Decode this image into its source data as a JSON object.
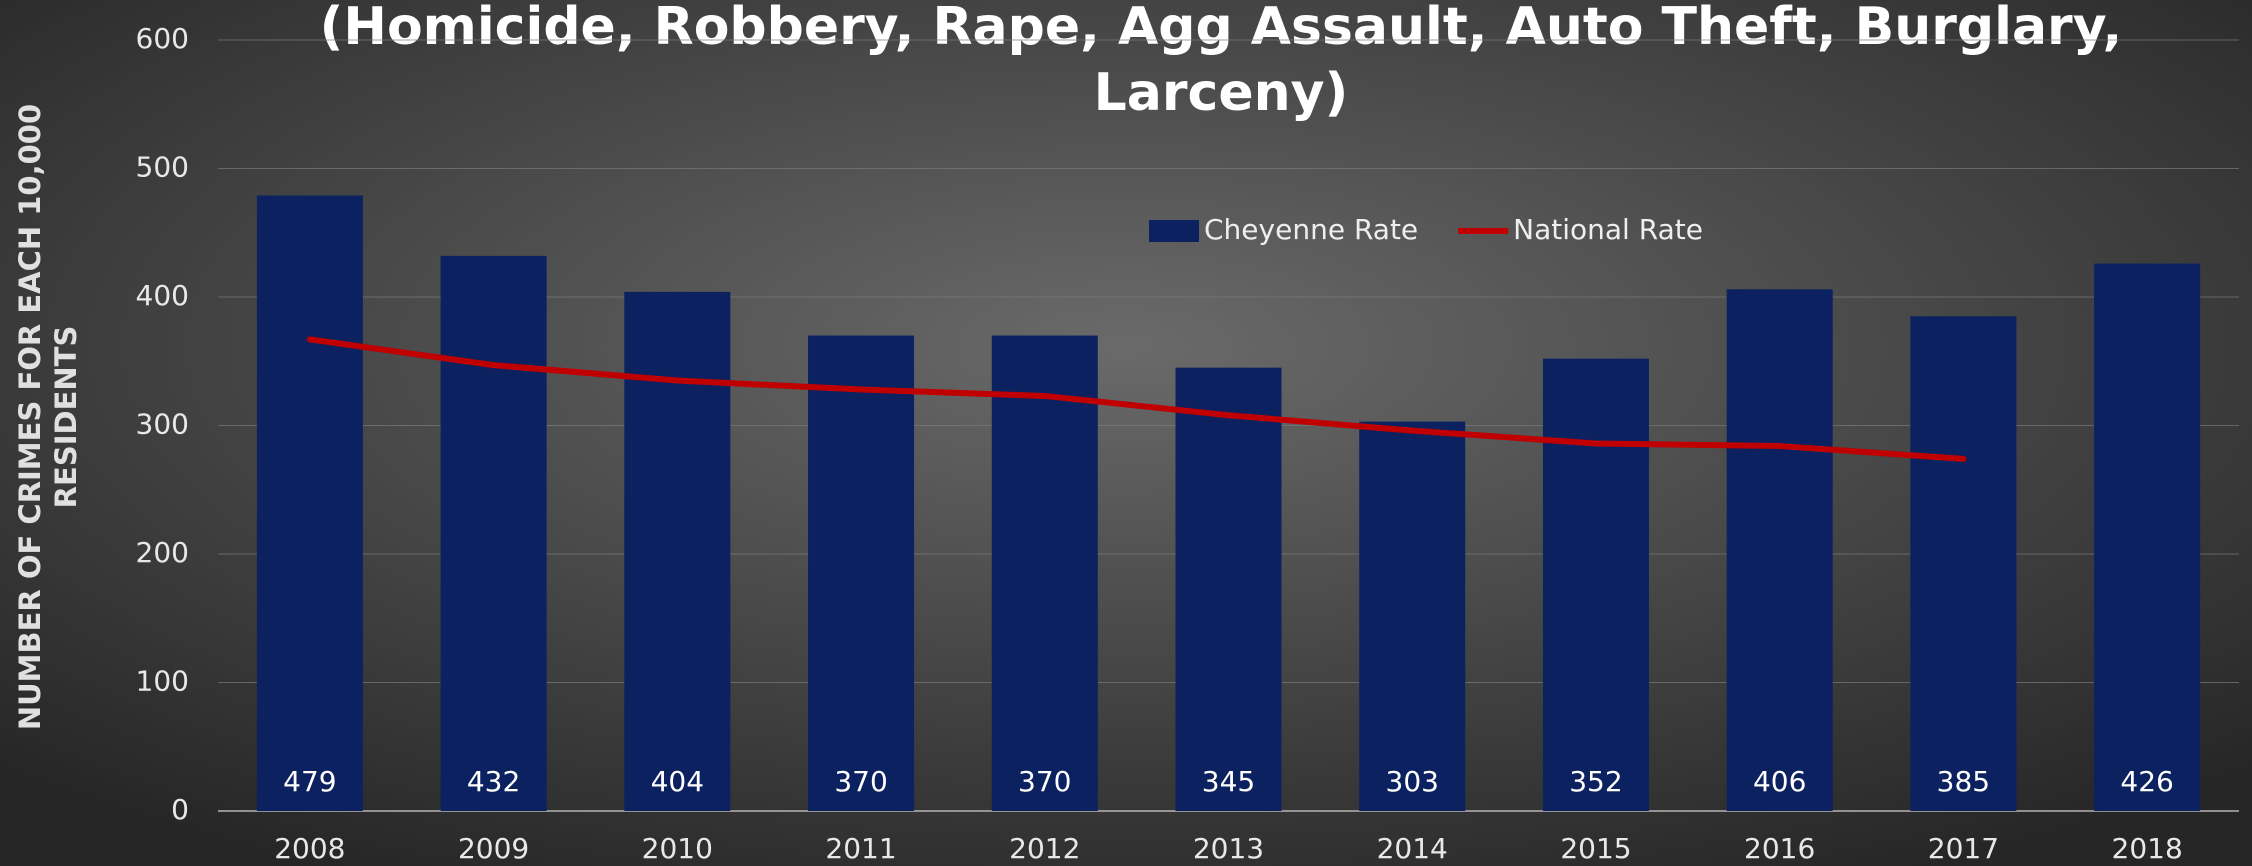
{
  "chart_data": {
    "type": "bar",
    "title_lines": [
      "(Homicide, Robbery, Rape, Agg Assault, Auto Theft, Burglary,",
      "Larceny)"
    ],
    "y_label_lines": [
      "NUMBER OF CRIMES FOR EACH 10,000",
      "RESIDENTS"
    ],
    "categories": [
      "2008",
      "2009",
      "2010",
      "2011",
      "2012",
      "2013",
      "2014",
      "2015",
      "2016",
      "2017",
      "2018"
    ],
    "series": [
      {
        "name": "Cheyenne Rate",
        "type": "bar",
        "color": "#0b2160",
        "data_labels": true,
        "values": [
          479,
          432,
          404,
          370,
          370,
          345,
          303,
          352,
          406,
          385,
          426
        ]
      },
      {
        "name": "National Rate",
        "type": "line",
        "color": "#c00000",
        "values": [
          367,
          347,
          335,
          328,
          323,
          308,
          296,
          286,
          284,
          274,
          null
        ]
      }
    ],
    "ylim": [
      0,
      600
    ],
    "yticks": [
      0,
      100,
      200,
      300,
      400,
      500,
      600
    ],
    "grid": true,
    "legend": "top"
  }
}
